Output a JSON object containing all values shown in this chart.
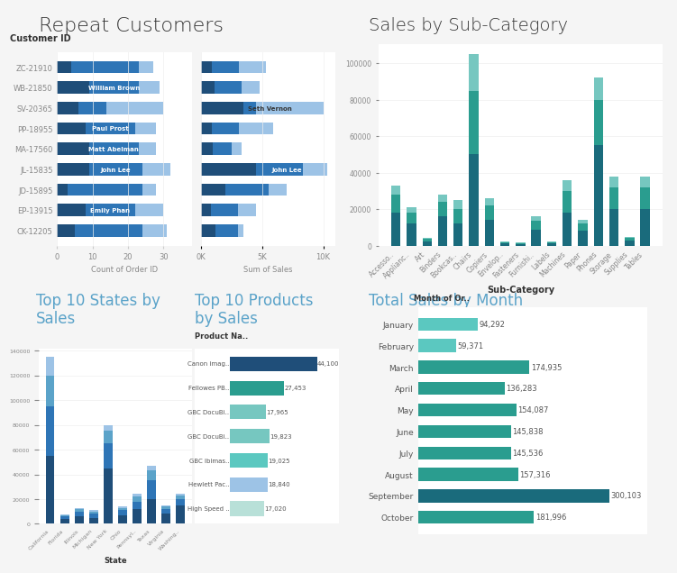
{
  "bg_color": "#f5f5f5",
  "panel_bg": "#ffffff",
  "title1": "Repeat Customers",
  "title2": "Sales by Sub-Category",
  "title3": "Top 10 States by\nSales",
  "title4": "Top 10 Products\nby Sales",
  "title5": "Total Sales by Month",
  "title_color_blue": "#5ba3c9",
  "title_color_dark": "#333333",
  "repeat_customers": {
    "customers": [
      "CK-12205",
      "EP-13915",
      "JD-15895",
      "JL-15835",
      "MA-17560",
      "PP-18955",
      "SV-20365",
      "WB-21850",
      "ZC-21910"
    ],
    "count_dark": [
      5,
      8,
      3,
      9,
      9,
      8,
      6,
      9,
      4
    ],
    "count_mid": [
      19,
      14,
      21,
      15,
      14,
      14,
      8,
      14,
      19
    ],
    "count_light": [
      7,
      8,
      4,
      8,
      5,
      6,
      16,
      6,
      4
    ],
    "sales_dark": [
      1200,
      800,
      2000,
      4500,
      1000,
      900,
      3500,
      1100,
      900
    ],
    "sales_mid": [
      1800,
      2200,
      3500,
      3800,
      1500,
      2200,
      1000,
      2200,
      2200
    ],
    "sales_light": [
      500,
      1500,
      1500,
      2000,
      800,
      2800,
      5500,
      1500,
      2200
    ],
    "labels": [
      "Emily Phan",
      "John Lee",
      "Matt Abelman",
      "Paul Prost",
      "Seth Vernon",
      "William Brown"
    ],
    "label_rows": [
      1,
      3,
      4,
      5,
      6,
      7
    ],
    "label_side": [
      "count",
      "count",
      "count",
      "count",
      "sales",
      "count"
    ],
    "dark_color": "#1f4e79",
    "mid_color": "#2e75b6",
    "light_color": "#9dc3e6"
  },
  "sub_category": {
    "categories": [
      "Accesso..",
      "Applianc..",
      "Art",
      "Binders",
      "Bookcas..",
      "Chairs",
      "Copiers",
      "Envelop..",
      "Fasteners",
      "Furnishi..",
      "Labels",
      "Machines",
      "Paper",
      "Phones",
      "Storage",
      "Supplies",
      "Tables"
    ],
    "seg1": [
      18000,
      12000,
      2000,
      16000,
      12000,
      50000,
      14000,
      1200,
      800,
      8500,
      1200,
      18000,
      8000,
      55000,
      20000,
      2500,
      20000
    ],
    "seg2": [
      10000,
      6000,
      1500,
      8000,
      8000,
      35000,
      8000,
      600,
      500,
      5000,
      600,
      12000,
      4000,
      25000,
      12000,
      1500,
      12000
    ],
    "seg3": [
      5000,
      3000,
      800,
      4000,
      5000,
      20000,
      4000,
      300,
      200,
      2500,
      300,
      6000,
      2000,
      12000,
      6000,
      800,
      6000
    ],
    "color1": "#1a6b7c",
    "color2": "#2a9d8f",
    "color3": "#76c7c0"
  },
  "states": {
    "names": [
      "California",
      "Florida",
      "Illinois",
      "Michigan",
      "New York",
      "Ohio",
      "Pennsyl..",
      "Texas",
      "Virginia",
      "Washing.."
    ],
    "seg1": [
      55000,
      4000,
      6000,
      5000,
      45000,
      7000,
      12000,
      20000,
      8000,
      15000
    ],
    "seg2": [
      40000,
      2000,
      4000,
      3000,
      20000,
      4000,
      6000,
      15000,
      4000,
      5000
    ],
    "seg3": [
      25000,
      1000,
      2000,
      2000,
      10000,
      2000,
      4000,
      8000,
      2000,
      3000
    ],
    "seg4": [
      15000,
      500,
      1000,
      1000,
      5000,
      1000,
      2000,
      4000,
      1000,
      1500
    ],
    "color1": "#1f4e79",
    "color2": "#2e75b6",
    "color3": "#5ba3c9",
    "color4": "#9dc3e6"
  },
  "products": {
    "names": [
      "Canon imag..",
      "Fellowes PB..",
      "GBC DocuBi..",
      "GBC DocuBi..",
      "GBC Ibimas..",
      "Hewlett Pac..",
      "High Speed .."
    ],
    "values": [
      44100,
      27453,
      17965,
      19823,
      19025,
      18840,
      17020
    ],
    "colors": [
      "#1f4e79",
      "#2a9d8f",
      "#76c7c0",
      "#76c7c0",
      "#5bc8c0",
      "#9dc3e6",
      "#b8e0d8"
    ]
  },
  "monthly_sales": {
    "months": [
      "January",
      "February",
      "March",
      "April",
      "May",
      "June",
      "July",
      "August",
      "September",
      "October"
    ],
    "values": [
      94292,
      59371,
      174935,
      136283,
      154087,
      145838,
      145536,
      157316,
      300103,
      181996
    ],
    "color_dark": "#1a6b7c",
    "color_light": "#5bc8c0"
  }
}
